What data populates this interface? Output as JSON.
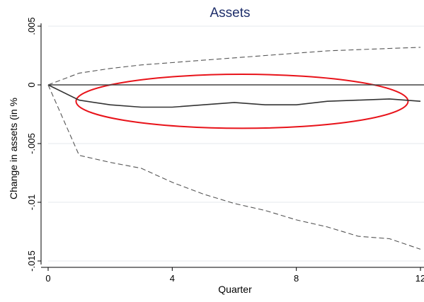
{
  "chart_data": {
    "type": "line",
    "title": "Assets",
    "xlabel": "Quarter",
    "ylabel": "Change in assets (in %",
    "xlim": [
      0,
      12
    ],
    "ylim": [
      -0.016,
      0.005
    ],
    "x_ticks": [
      0,
      4,
      8,
      12
    ],
    "x_tick_labels": [
      "0",
      "4",
      "8",
      "12"
    ],
    "y_ticks": [
      0.005,
      0,
      -0.005,
      -0.01,
      -0.015
    ],
    "y_tick_labels": [
      ".005",
      "0",
      "-.005",
      "-.01",
      "-.015"
    ],
    "grid": "horizontal",
    "legend": "none",
    "x": [
      0,
      1,
      2,
      3,
      4,
      5,
      6,
      7,
      8,
      9,
      10,
      11,
      12
    ],
    "series": [
      {
        "role": "point-estimate",
        "style": "solid",
        "color": "#333333",
        "values": [
          0,
          -0.0013,
          -0.0017,
          -0.0019,
          -0.0019,
          -0.0017,
          -0.0015,
          -0.0017,
          -0.0017,
          -0.0014,
          -0.0013,
          -0.0012,
          -0.0014
        ]
      },
      {
        "role": "upper-bound",
        "style": "dashed",
        "color": "#555555",
        "values": [
          0,
          0.001,
          0.0014,
          0.0017,
          0.0019,
          0.0021,
          0.0023,
          0.0025,
          0.0027,
          0.0029,
          0.003,
          0.0031,
          0.0032
        ]
      },
      {
        "role": "lower-bound",
        "style": "dashed",
        "color": "#555555",
        "values": [
          0,
          -0.006,
          -0.0066,
          -0.0071,
          -0.0083,
          -0.0093,
          -0.0101,
          -0.0107,
          -0.0115,
          -0.0121,
          -0.0129,
          -0.0131,
          -0.014
        ]
      }
    ],
    "zero_line": 0,
    "annotations": [
      {
        "type": "ellipse",
        "color": "#e8131a",
        "x_range": [
          0.9,
          11.6
        ],
        "y_range": [
          -0.0037,
          0.0009
        ]
      }
    ],
    "colors": {
      "title": "#1f2f6b",
      "axis": "#000000",
      "grid": "#e6eaee",
      "annotation": "#e8131a"
    }
  }
}
